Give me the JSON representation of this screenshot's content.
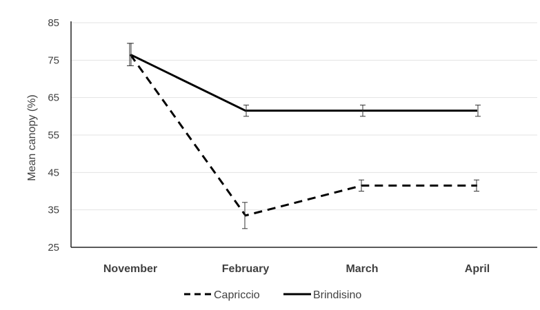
{
  "chart_data": {
    "type": "line",
    "categories": [
      "November",
      "February",
      "March",
      "April"
    ],
    "ylabel": "Mean canopy (%)",
    "ylim": [
      25,
      85
    ],
    "yticks": [
      25,
      35,
      45,
      55,
      65,
      75,
      85
    ],
    "grid": true,
    "legend_position": "bottom",
    "series": [
      {
        "name": "Capriccio",
        "style": "dashed",
        "color": "#000000",
        "values": [
          76.5,
          33.5,
          41.5,
          41.5
        ],
        "error": [
          3.0,
          3.5,
          1.5,
          1.5
        ]
      },
      {
        "name": "Brindisino",
        "style": "solid",
        "color": "#000000",
        "values": [
          76.5,
          61.5,
          61.5,
          61.5
        ],
        "error": [
          3.0,
          1.5,
          1.5,
          1.5
        ]
      }
    ]
  }
}
